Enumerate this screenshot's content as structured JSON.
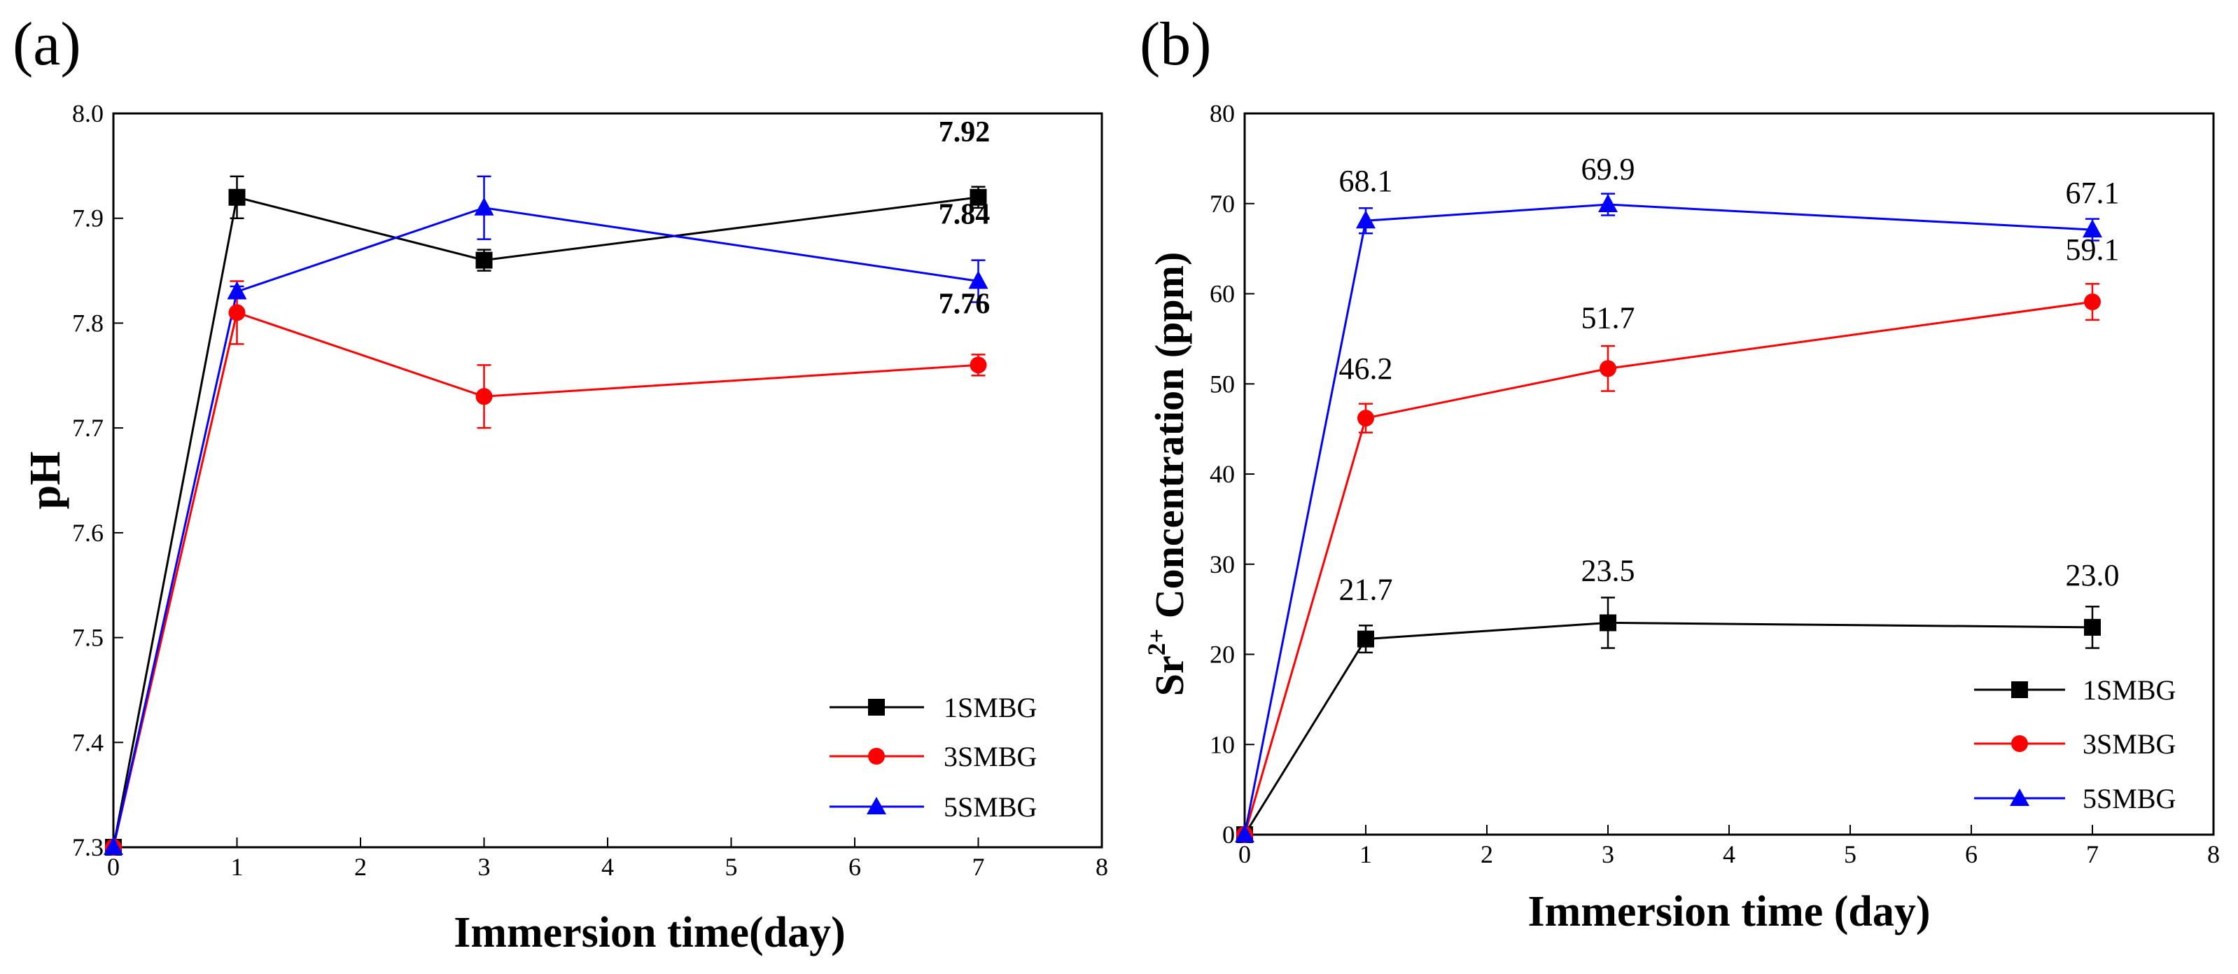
{
  "chart_data": [
    {
      "panel_label": "(a)",
      "type": "line",
      "xlabel": "Immersion time(day)",
      "ylabel": "pH",
      "xlim": [
        0,
        8
      ],
      "ylim": [
        7.3,
        8.0
      ],
      "xticks": [
        0,
        1,
        2,
        3,
        4,
        5,
        6,
        7,
        8
      ],
      "yticks": [
        "7.3",
        "7.4",
        "7.5",
        "7.6",
        "7.7",
        "7.8",
        "7.9",
        "8.0"
      ],
      "legend_position": "bottom-right",
      "series": [
        {
          "name": "1SMBG",
          "color": "#000000",
          "marker": "square",
          "x": [
            0,
            1,
            3,
            7
          ],
          "y": [
            7.3,
            7.92,
            7.86,
            7.92
          ],
          "err": [
            0,
            0.02,
            0.01,
            0.01
          ]
        },
        {
          "name": "3SMBG",
          "color": "#ff0000",
          "marker": "circle",
          "x": [
            0,
            1,
            3,
            7
          ],
          "y": [
            7.3,
            7.81,
            7.73,
            7.76
          ],
          "err": [
            0,
            0.03,
            0.03,
            0.01
          ]
        },
        {
          "name": "5SMBG",
          "color": "#0000ff",
          "marker": "triangle",
          "x": [
            0,
            1,
            3,
            7
          ],
          "y": [
            7.3,
            7.83,
            7.91,
            7.84
          ],
          "err": [
            0,
            0.005,
            0.03,
            0.02
          ]
        }
      ],
      "annotations": [
        {
          "text": "7.92",
          "x": 7,
          "y": 7.92
        },
        {
          "text": "7.84",
          "x": 7,
          "y": 7.84
        },
        {
          "text": "7.76",
          "x": 7,
          "y": 7.76
        }
      ]
    },
    {
      "panel_label": "(b)",
      "type": "line",
      "xlabel": "Immersion time (day)",
      "ylabel_prefix": "Sr",
      "ylabel_superscript": "2+",
      "ylabel_suffix": " Concentration (ppm)",
      "xlim": [
        0,
        8
      ],
      "ylim": [
        0,
        80
      ],
      "xticks": [
        0,
        1,
        2,
        3,
        4,
        5,
        6,
        7,
        8
      ],
      "yticks": [
        "0",
        "10",
        "20",
        "30",
        "40",
        "50",
        "60",
        "70",
        "80"
      ],
      "legend_position": "bottom-right",
      "series": [
        {
          "name": "1SMBG",
          "color": "#000000",
          "marker": "square",
          "x": [
            0,
            1,
            3,
            7
          ],
          "y": [
            0,
            21.7,
            23.5,
            23.0
          ],
          "err": [
            0,
            1.5,
            2.8,
            2.3
          ]
        },
        {
          "name": "3SMBG",
          "color": "#ff0000",
          "marker": "circle",
          "x": [
            0,
            1,
            3,
            7
          ],
          "y": [
            0,
            46.2,
            51.7,
            59.1
          ],
          "err": [
            0,
            1.6,
            2.5,
            2.0
          ]
        },
        {
          "name": "5SMBG",
          "color": "#0000ff",
          "marker": "triangle",
          "x": [
            0,
            1,
            3,
            7
          ],
          "y": [
            0,
            68.1,
            69.9,
            67.1
          ],
          "err": [
            0,
            1.4,
            1.2,
            1.2
          ]
        }
      ],
      "annotations": [
        {
          "text": "68.1",
          "x": 1,
          "y": 68.1
        },
        {
          "text": "69.9",
          "x": 3,
          "y": 69.9
        },
        {
          "text": "67.1",
          "x": 7,
          "y": 67.1
        },
        {
          "text": "46.2",
          "x": 1,
          "y": 46.2
        },
        {
          "text": "51.7",
          "x": 3,
          "y": 51.7
        },
        {
          "text": "59.1",
          "x": 7,
          "y": 59.1
        },
        {
          "text": "21.7",
          "x": 1,
          "y": 21.7
        },
        {
          "text": "23.5",
          "x": 3,
          "y": 23.5
        },
        {
          "text": "23.0",
          "x": 7,
          "y": 23.0
        }
      ]
    }
  ]
}
